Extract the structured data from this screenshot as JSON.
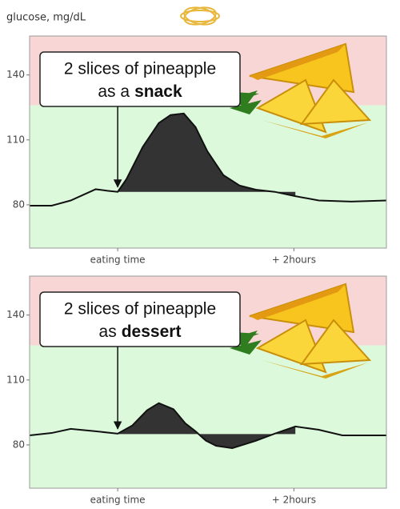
{
  "title": "glucose, mg/dL",
  "chart_data": [
    {
      "type": "line",
      "annotation": {
        "line1": "2 slices of pineapple",
        "line2": "as a",
        "line2_bold": "snack"
      },
      "x": [
        -60,
        -45,
        -32,
        -15,
        -7,
        0,
        6,
        17,
        28,
        36,
        45,
        53,
        61,
        72,
        83,
        94,
        107,
        121,
        137,
        159,
        183
      ],
      "values": [
        79.6,
        79.6,
        82,
        87.2,
        86.5,
        86,
        91.9,
        106.7,
        117.8,
        121.5,
        122.2,
        115.9,
        104.8,
        93.7,
        88.9,
        87,
        86,
        84,
        82,
        81.5,
        82
      ],
      "xlim": [
        -60,
        183
      ],
      "ylim": [
        60,
        158
      ],
      "yticks": [
        80,
        110,
        140
      ],
      "xticks": [
        {
          "value": 0,
          "label": "eating time"
        },
        {
          "value": 120,
          "label": "+ 2hours"
        }
      ],
      "threshold": 126,
      "fill_baseline": 86,
      "fill_range": [
        0,
        121
      ],
      "color": "#111111",
      "fill_color": "#333333",
      "zone_colors": [
        "#dcf9dc",
        "#f9d6d6"
      ]
    },
    {
      "type": "line",
      "annotation": {
        "line1": "2 slices of pineapple",
        "line2": "as",
        "line2_bold": "dessert"
      },
      "x": [
        -60,
        -45,
        -32,
        -15,
        0,
        10,
        20,
        28,
        38,
        46,
        53,
        60,
        67,
        78,
        94,
        107,
        121,
        137,
        153,
        183
      ],
      "values": [
        84.4,
        85.5,
        87.4,
        86.3,
        85.2,
        89,
        96,
        99.3,
        96.5,
        90,
        86.3,
        82,
        79.6,
        78.5,
        81.9,
        85.2,
        88.5,
        87,
        84.4,
        84.4
      ],
      "xlim": [
        -60,
        183
      ],
      "ylim": [
        60,
        158
      ],
      "yticks": [
        80,
        110,
        140
      ],
      "xticks": [
        {
          "value": 0,
          "label": "eating time"
        },
        {
          "value": 120,
          "label": "+ 2hours"
        }
      ],
      "threshold": 126,
      "fill_baseline": 85,
      "fill_range": [
        0,
        121
      ],
      "color": "#111111",
      "fill_color": "#333333",
      "zone_colors": [
        "#dcf9dc",
        "#f9d6d6"
      ]
    }
  ]
}
